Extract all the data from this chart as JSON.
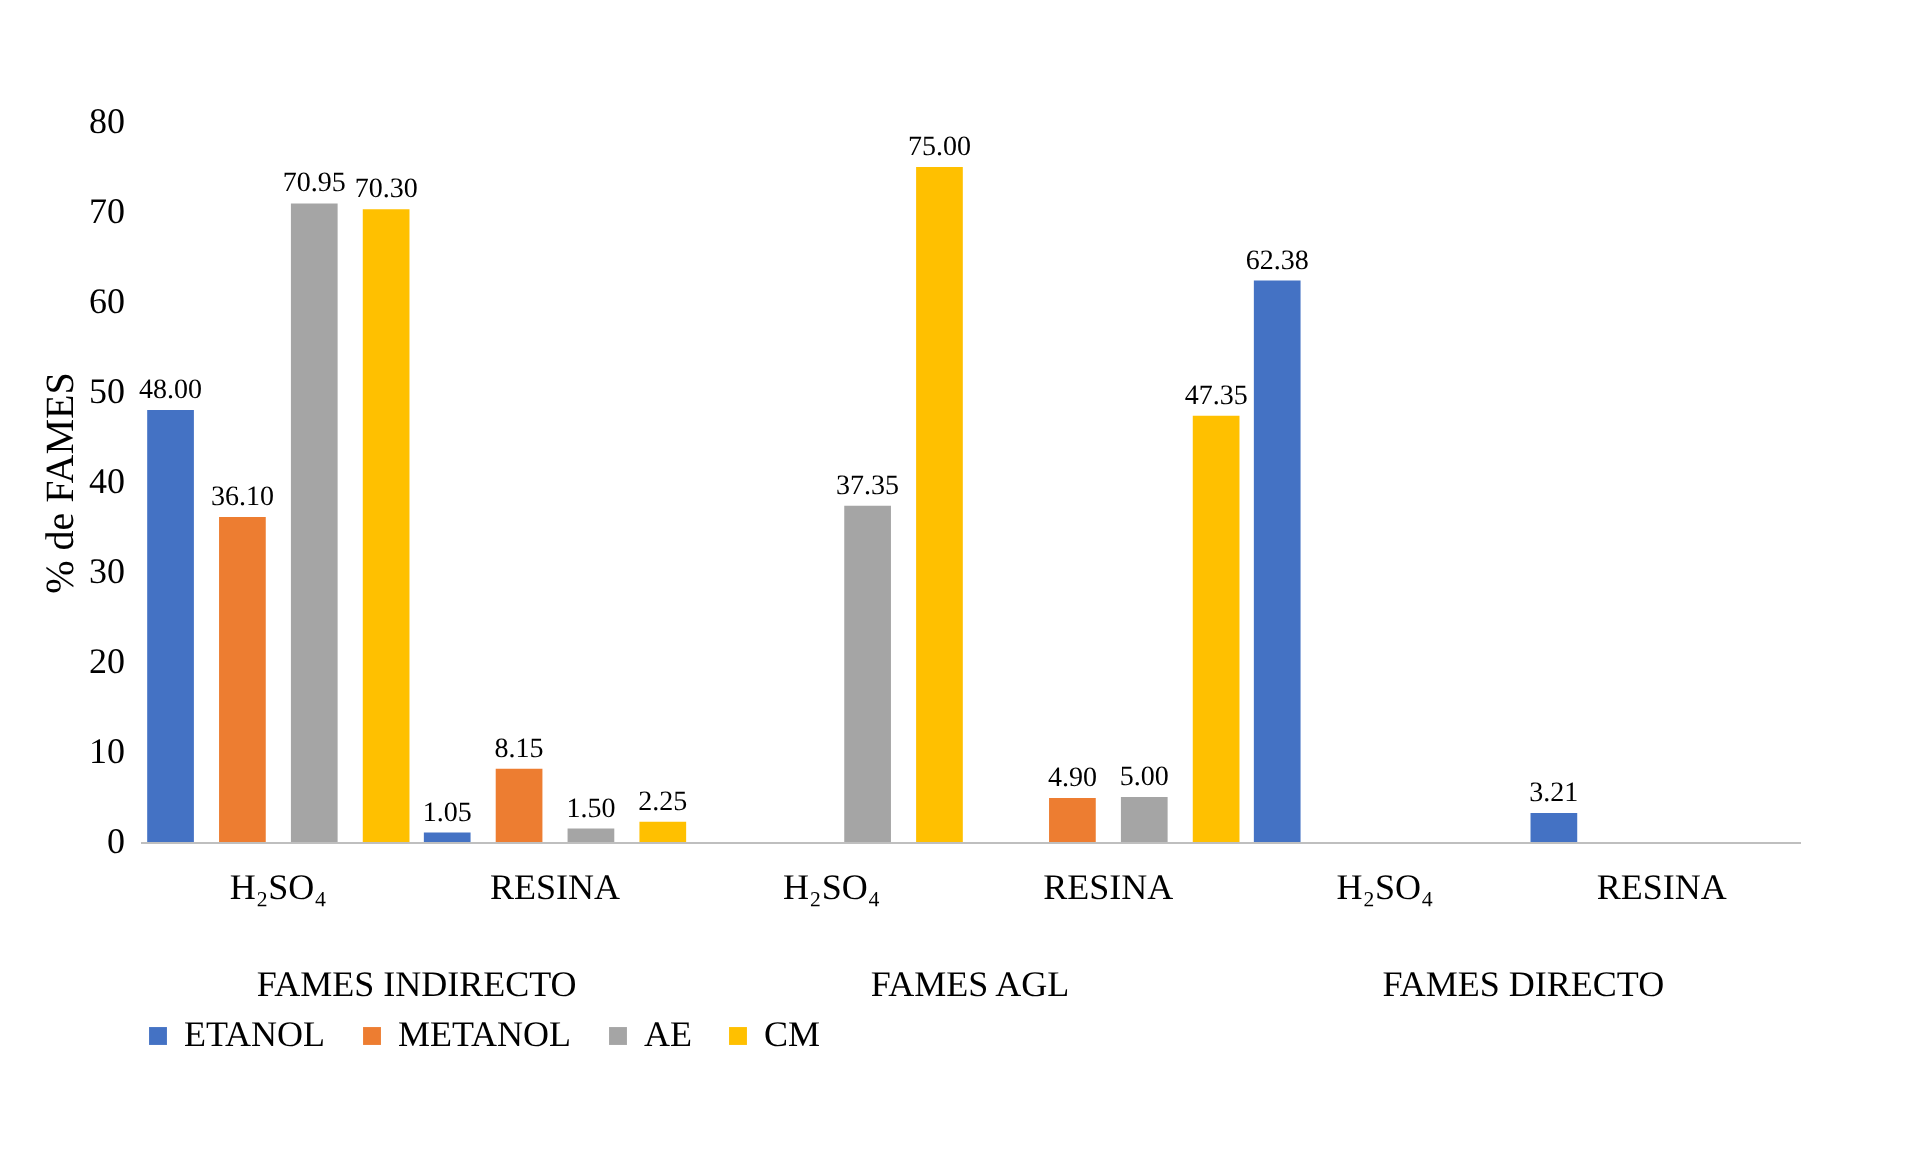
{
  "chart_data": {
    "type": "bar",
    "ylabel": "% de FAMES",
    "categories": [
      "H₂SO₄",
      "RESINA",
      "H₂SO₄",
      "RESINA",
      "H₂SO₄",
      "RESINA"
    ],
    "series": [
      {
        "name": "ETANOL",
        "color": "#4472c4",
        "values": [
          48.0,
          1.05,
          null,
          null,
          62.38,
          3.21
        ],
        "value_labels": [
          "48.00",
          "1.05",
          null,
          null,
          "62.38",
          "3.21"
        ]
      },
      {
        "name": "METANOL",
        "color": "#ed7d31",
        "values": [
          36.1,
          8.15,
          null,
          4.9,
          null,
          null
        ],
        "value_labels": [
          "36.10",
          "8.15",
          null,
          "4.90",
          null,
          null
        ]
      },
      {
        "name": "AE",
        "color": "#a5a5a5",
        "values": [
          70.95,
          1.5,
          37.35,
          5.0,
          null,
          null
        ],
        "value_labels": [
          "70.95",
          "1.50",
          "37.35",
          "5.00",
          null,
          null
        ]
      },
      {
        "name": "CM",
        "color": "#ffc000",
        "values": [
          70.3,
          2.25,
          75.0,
          47.35,
          null,
          null
        ],
        "value_labels": [
          "70.30",
          "2.25",
          "75.00",
          "47.35",
          null,
          null
        ]
      }
    ],
    "annotations": [
      "FAMES INDIRECTO",
      "FAMES AGL",
      "FAMES DIRECTO"
    ],
    "ylim": [
      0,
      80
    ],
    "yticks": [
      0,
      10,
      20,
      30,
      40,
      50,
      60,
      70,
      80
    ],
    "grid": false,
    "legend": "bottom"
  }
}
